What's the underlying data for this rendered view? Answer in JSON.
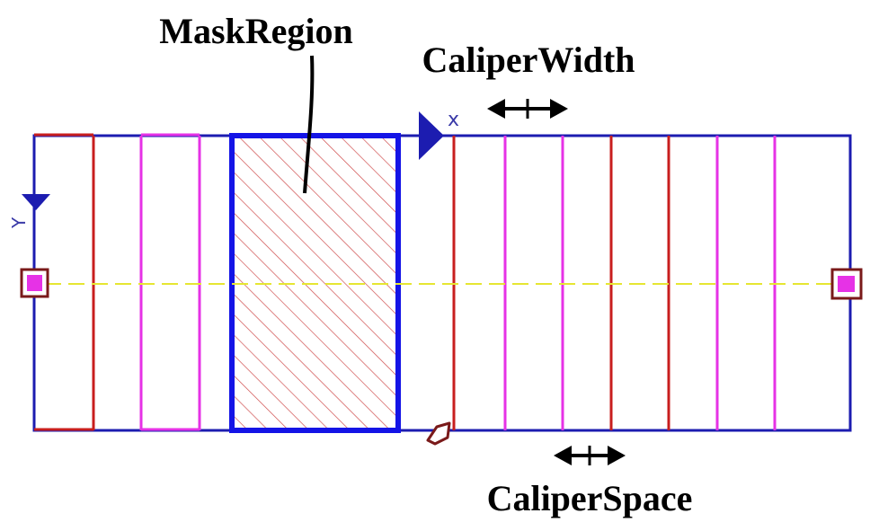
{
  "labels": {
    "mask_region": "MaskRegion",
    "caliper_width": "CaliperWidth",
    "caliper_space": "CaliperSpace"
  },
  "axes": {
    "x": "x",
    "y": "Y"
  },
  "colors": {
    "frame": "#1c1cb0",
    "mask_border": "#1414e6",
    "hatch": "#d05050",
    "caliper_red": "#c81e1e",
    "caliper_magenta": "#e632e6",
    "center_line": "#e6e632",
    "handle_border": "#7a1a1a",
    "handle_fill": "#e632e6",
    "text": "#000000"
  }
}
